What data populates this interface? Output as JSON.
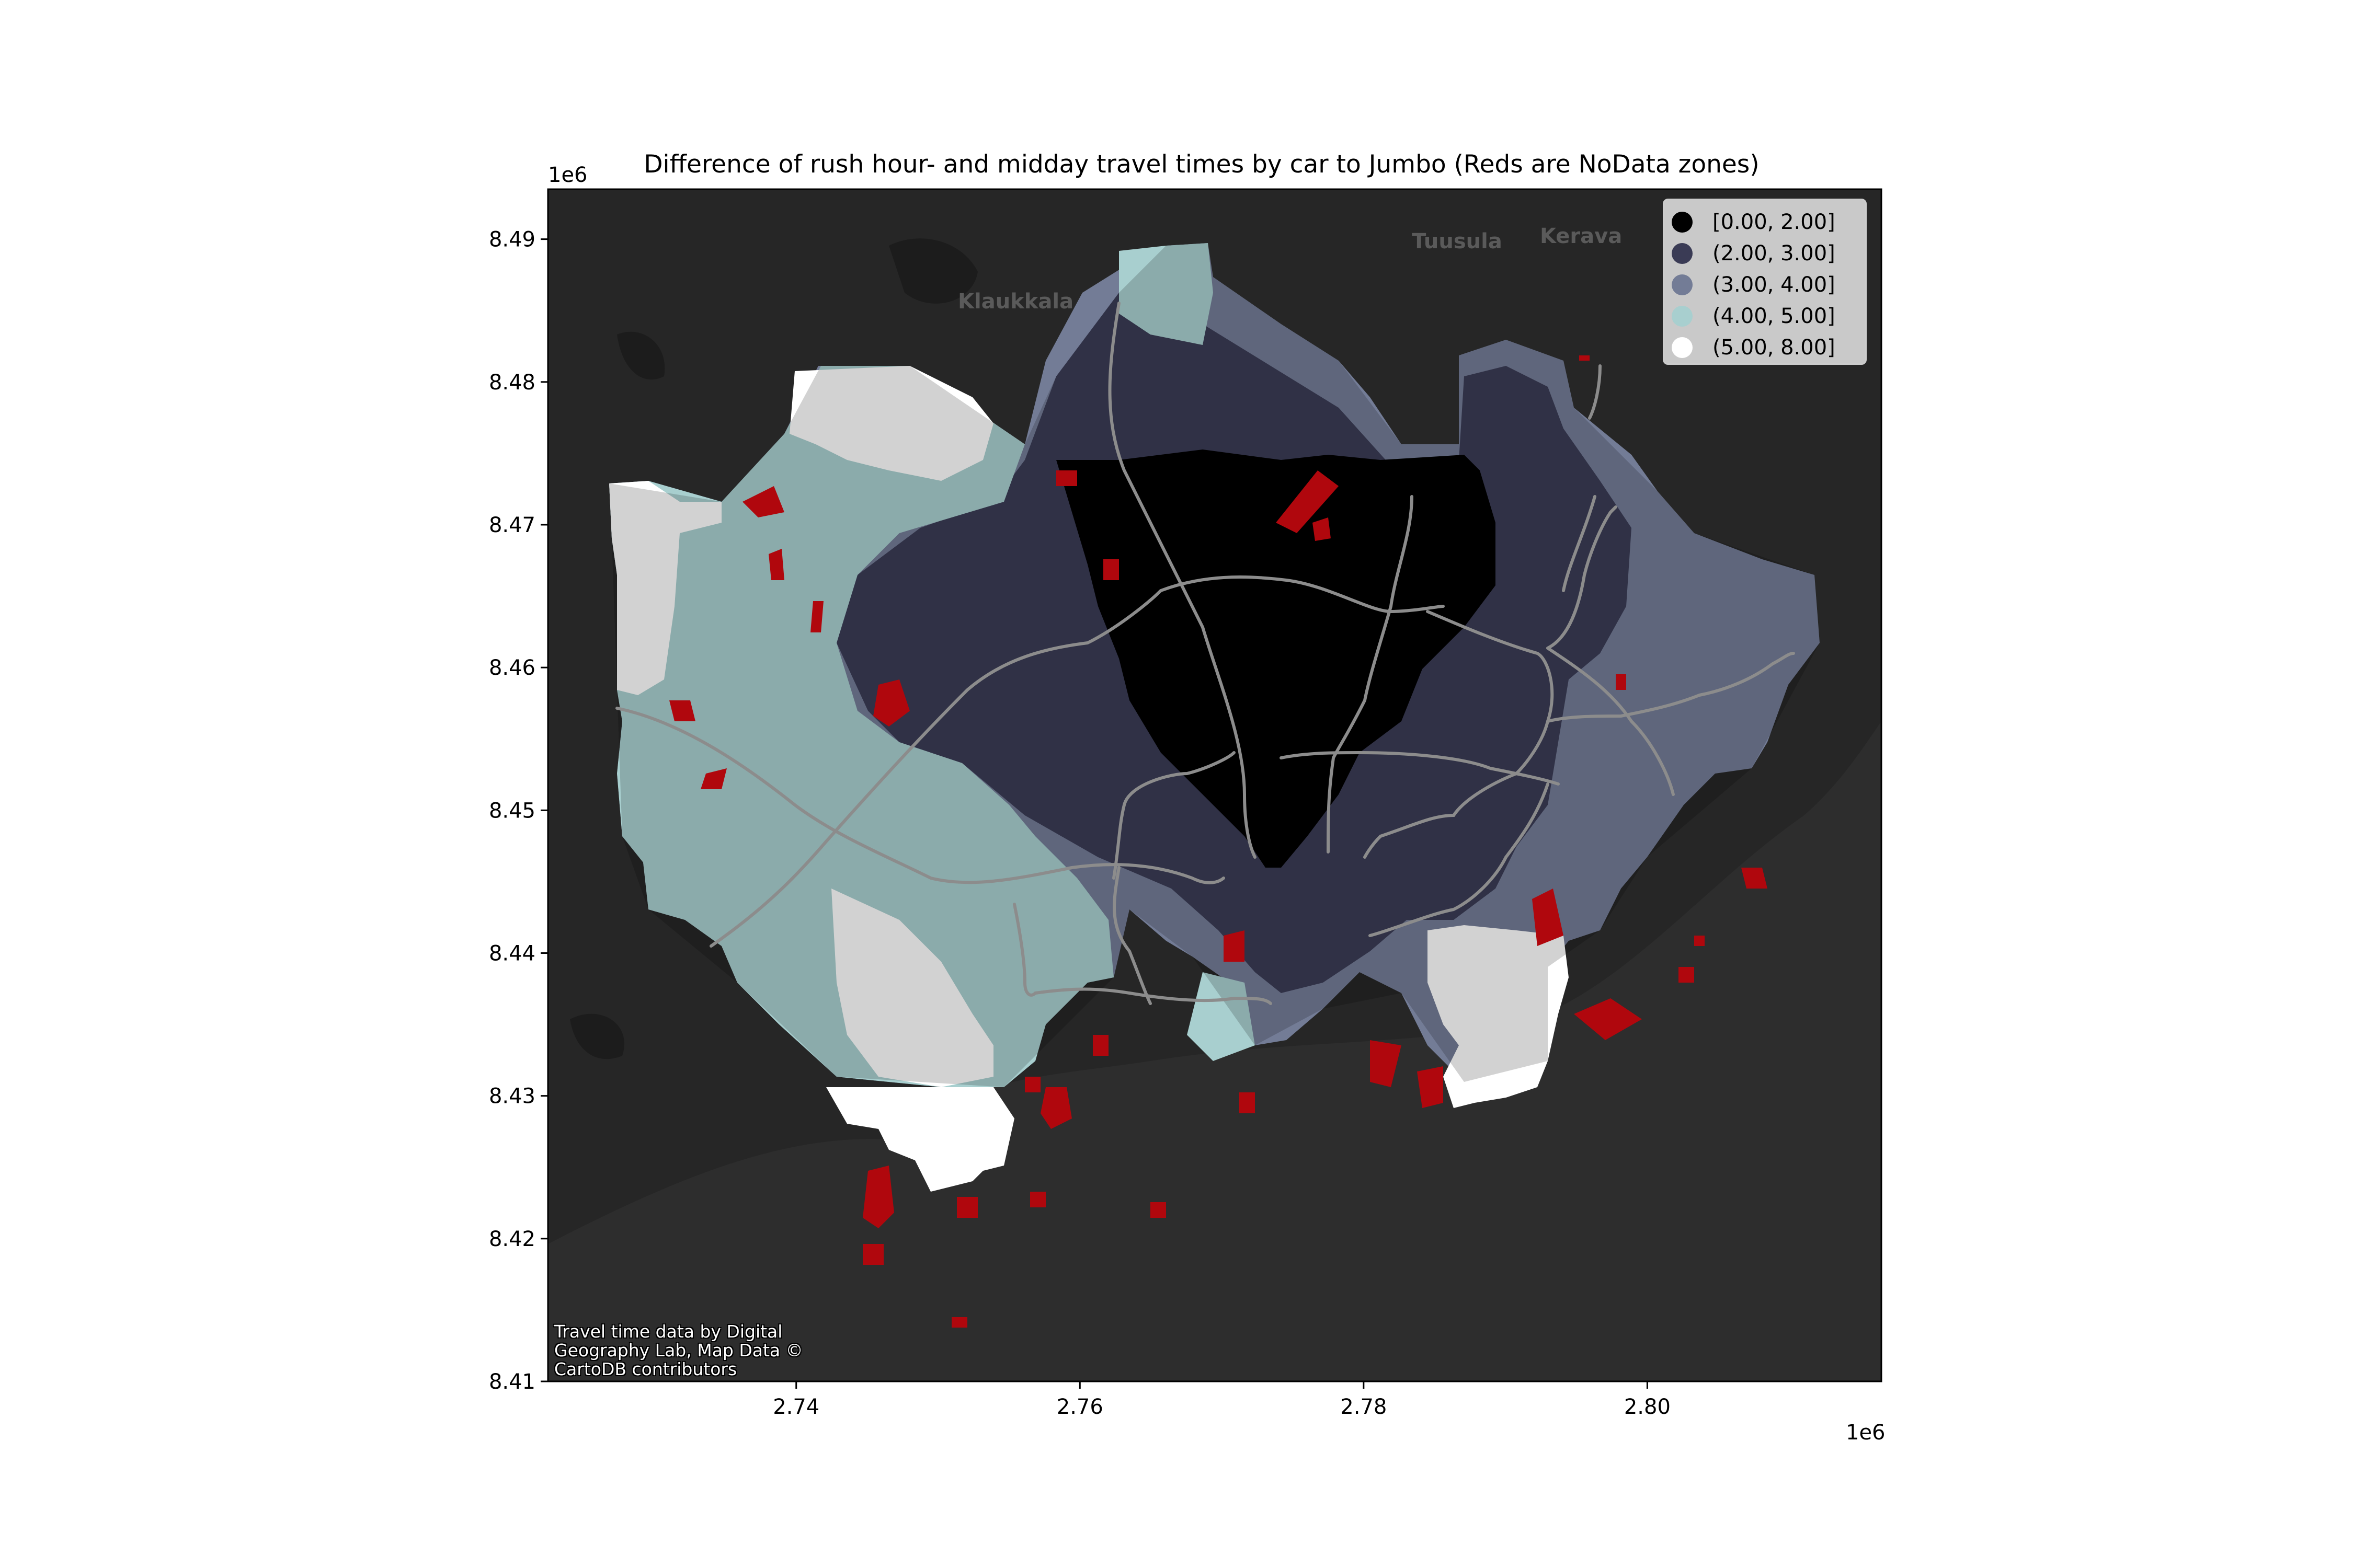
{
  "title": "Difference of rush hour- and midday travel times by car to Jumbo (Reds are NoData zones)",
  "axes": {
    "x_exponent": "1e6",
    "y_exponent": "1e6",
    "x_ticks": [
      "2.74",
      "2.76",
      "2.78",
      "2.80"
    ],
    "y_ticks": [
      "8.49",
      "8.48",
      "8.47",
      "8.46",
      "8.45",
      "8.44",
      "8.43",
      "8.42",
      "8.41"
    ]
  },
  "legend": {
    "placement": "top-right",
    "items": [
      {
        "label": "[0.00, 2.00]",
        "color": "#000000"
      },
      {
        "label": "(2.00, 3.00]",
        "color": "#3a3b55"
      },
      {
        "label": "(3.00, 4.00]",
        "color": "#737c96"
      },
      {
        "label": "(4.00, 5.00]",
        "color": "#a8cfcf"
      },
      {
        "label": "(5.00, 8.00]",
        "color": "#ffffff"
      }
    ]
  },
  "basemap_labels": [
    "Tuusula",
    "Kerava",
    "Klaukkala"
  ],
  "attribution": "Travel time data by Digital Geography Lab, Map Data © CartoDB contributors",
  "colors": {
    "background": "#262626",
    "sea": "#2b2b2b",
    "roads": "#888888",
    "nodata": "#b0070d"
  },
  "chart_data": {
    "type": "choropleth",
    "title": "Difference of rush hour- and midday travel times by car to Jumbo (Reds are NoData zones)",
    "x_exponent": "1e6",
    "y_exponent": "1e6",
    "xlim": [
      2.7225,
      2.8165
    ],
    "ylim": [
      8.41,
      8.4935
    ],
    "xticks": [
      2.74,
      2.76,
      2.78,
      2.8
    ],
    "yticks": [
      8.41,
      8.42,
      8.43,
      8.44,
      8.45,
      8.46,
      8.47,
      8.48,
      8.49
    ],
    "classes": [
      "[0.00, 2.00]",
      "(2.00, 3.00]",
      "(3.00, 4.00]",
      "(4.00, 5.00]",
      "(5.00, 8.00]"
    ],
    "legend_placement": "top-right",
    "grid": false
  }
}
